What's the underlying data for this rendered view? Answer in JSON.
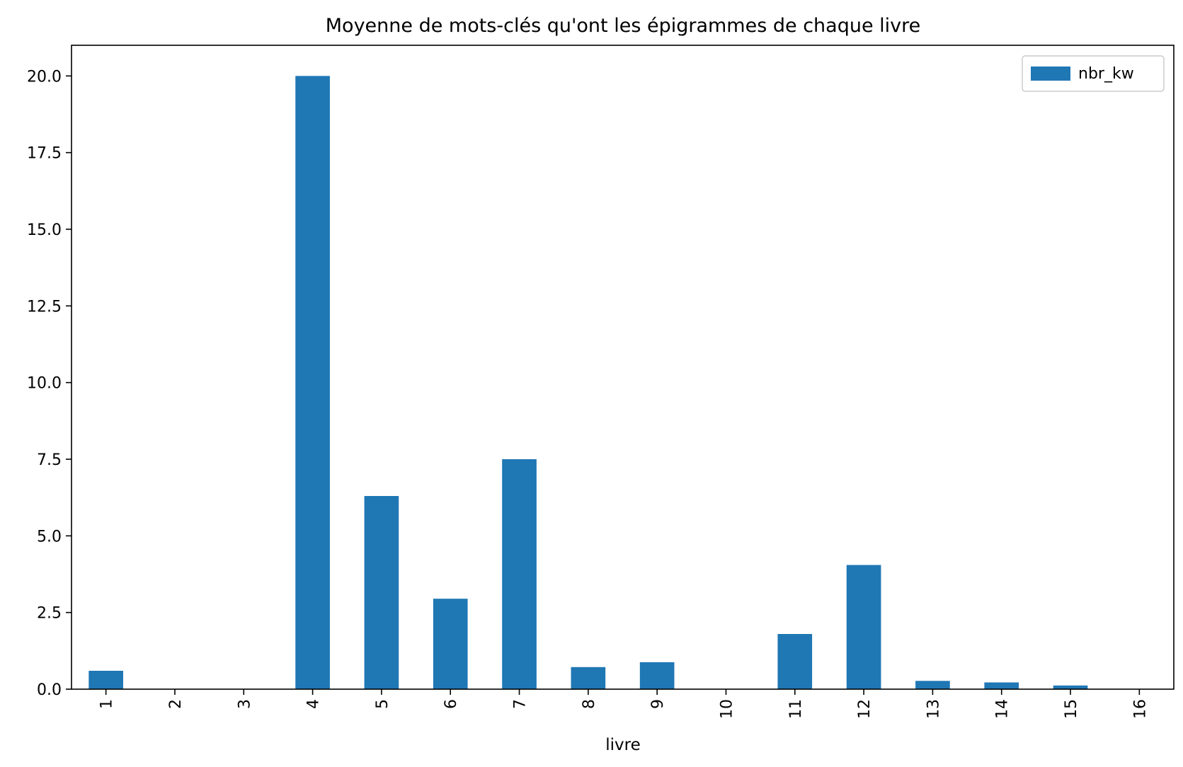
{
  "chart_data": {
    "type": "bar",
    "title": "Moyenne de mots-clés qu'ont les épigrammes de chaque livre",
    "xlabel": "livre",
    "ylabel": "",
    "categories": [
      "1",
      "2",
      "3",
      "4",
      "5",
      "6",
      "7",
      "8",
      "9",
      "10",
      "11",
      "12",
      "13",
      "14",
      "15",
      "16"
    ],
    "series": [
      {
        "name": "nbr_kw",
        "color": "#1f77b4",
        "values": [
          0.6,
          0.0,
          0.0,
          20.0,
          6.3,
          2.95,
          7.5,
          0.72,
          0.88,
          0.0,
          1.8,
          4.05,
          0.27,
          0.22,
          0.12,
          0.0
        ]
      }
    ],
    "ylim": [
      0,
      21
    ],
    "yticks": [
      0.0,
      2.5,
      5.0,
      7.5,
      10.0,
      12.5,
      15.0,
      17.5,
      20.0
    ],
    "ytick_labels": [
      "0.0",
      "2.5",
      "5.0",
      "7.5",
      "10.0",
      "12.5",
      "15.0",
      "17.5",
      "20.0"
    ],
    "xtick_rotation": "vertical",
    "grid": false,
    "legend_position": "top-right"
  }
}
